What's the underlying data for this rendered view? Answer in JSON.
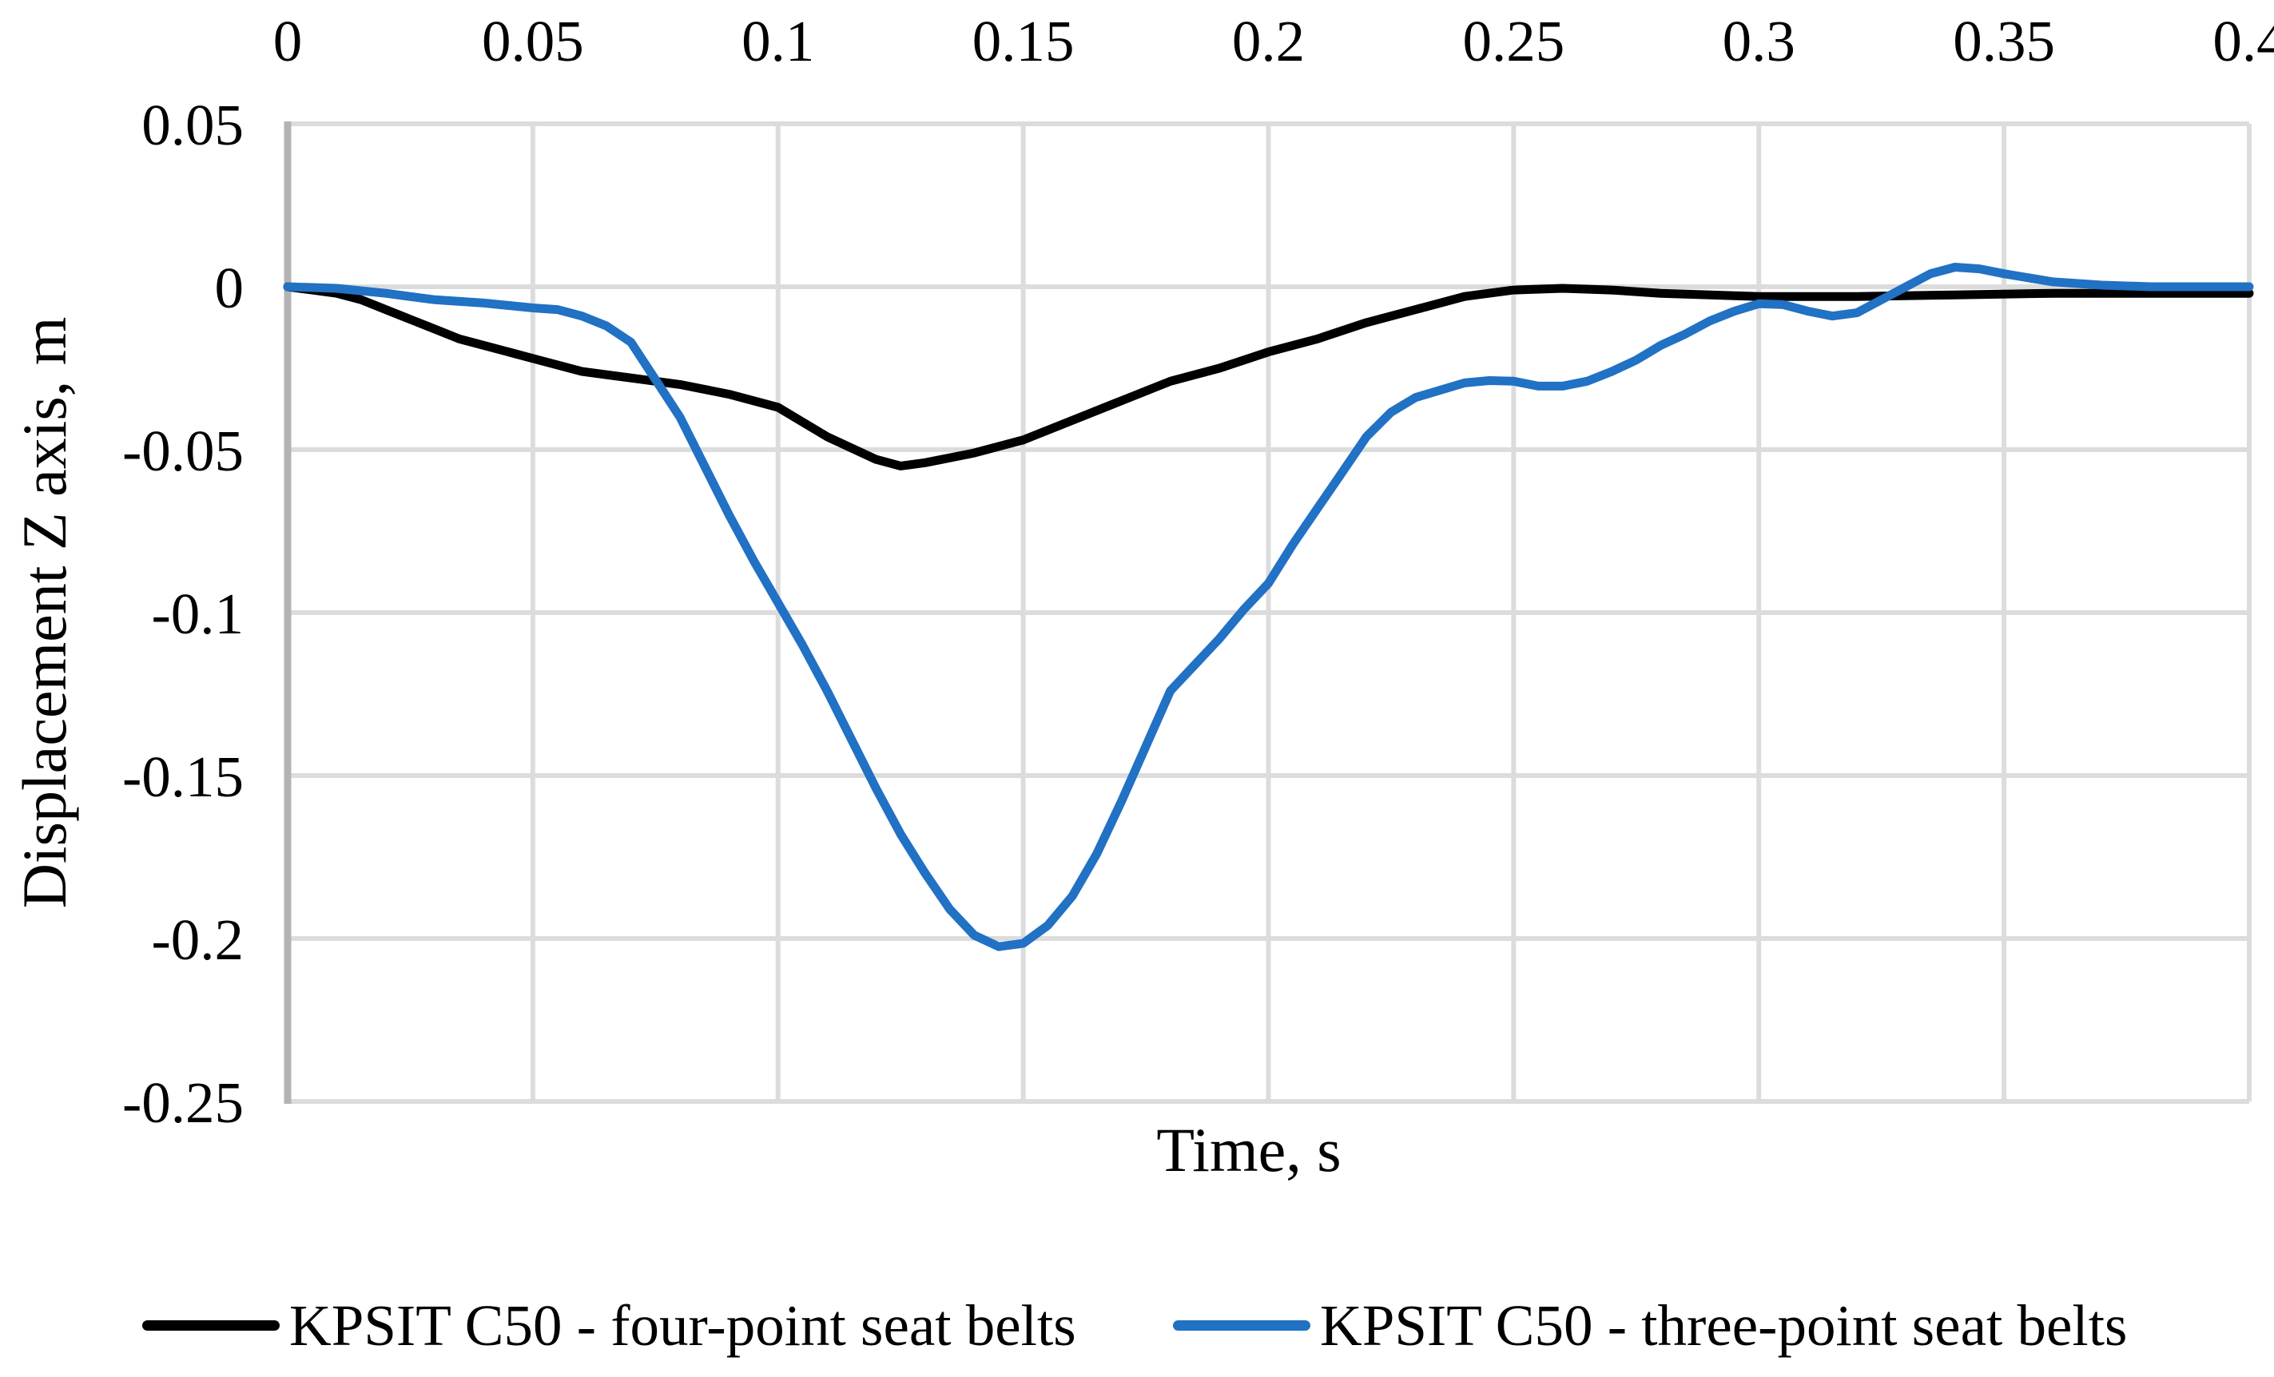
{
  "chart_data": {
    "type": "line",
    "title": "",
    "xlabel": "Time, s",
    "ylabel": "Displacement Z axis, m",
    "xlim": [
      0,
      0.4
    ],
    "ylim": [
      -0.25,
      0.05
    ],
    "x_ticks": [
      0,
      0.05,
      0.1,
      0.15,
      0.2,
      0.25,
      0.3,
      0.35,
      0.4
    ],
    "x_tick_labels": [
      "0",
      "0.05",
      "0.1",
      "0.15",
      "0.2",
      "0.25",
      "0.3",
      "0.35",
      "0.4"
    ],
    "y_ticks": [
      0.05,
      0,
      -0.05,
      -0.1,
      -0.15,
      -0.2,
      -0.25
    ],
    "y_tick_labels": [
      "0.05",
      "0",
      "-0.05",
      "-0.1",
      "-0.15",
      "-0.2",
      "-0.25"
    ],
    "grid": true,
    "legend_position": "bottom",
    "colors": {
      "gridline": "#DCDCDC",
      "axis_line": "#B3B3B3",
      "text": "#000000"
    },
    "series": [
      {
        "name": "KPSIT C50 - four-point seat belts",
        "color": "#000000",
        "x": [
          0,
          0.005,
          0.01,
          0.015,
          0.02,
          0.025,
          0.03,
          0.035,
          0.04,
          0.045,
          0.05,
          0.06,
          0.07,
          0.08,
          0.09,
          0.1,
          0.11,
          0.12,
          0.125,
          0.13,
          0.14,
          0.15,
          0.16,
          0.17,
          0.18,
          0.19,
          0.2,
          0.21,
          0.22,
          0.23,
          0.24,
          0.25,
          0.26,
          0.27,
          0.28,
          0.3,
          0.32,
          0.34,
          0.36,
          0.38,
          0.4
        ],
        "y": [
          0,
          -0.001,
          -0.002,
          -0.004,
          -0.007,
          -0.01,
          -0.013,
          -0.016,
          -0.018,
          -0.02,
          -0.022,
          -0.026,
          -0.028,
          -0.03,
          -0.033,
          -0.037,
          -0.046,
          -0.053,
          -0.055,
          -0.054,
          -0.051,
          -0.047,
          -0.041,
          -0.035,
          -0.029,
          -0.025,
          -0.02,
          -0.016,
          -0.011,
          -0.007,
          -0.003,
          -0.001,
          -0.0005,
          -0.001,
          -0.002,
          -0.003,
          -0.003,
          -0.0025,
          -0.002,
          -0.002,
          -0.002
        ]
      },
      {
        "name": "KPSIT C50 - three-point seat belts",
        "color": "#2171C4",
        "x": [
          0,
          0.01,
          0.02,
          0.03,
          0.04,
          0.05,
          0.055,
          0.06,
          0.065,
          0.07,
          0.075,
          0.08,
          0.085,
          0.09,
          0.095,
          0.1,
          0.105,
          0.11,
          0.115,
          0.12,
          0.125,
          0.13,
          0.135,
          0.14,
          0.145,
          0.15,
          0.155,
          0.16,
          0.165,
          0.17,
          0.175,
          0.18,
          0.185,
          0.19,
          0.195,
          0.2,
          0.205,
          0.21,
          0.215,
          0.22,
          0.225,
          0.23,
          0.24,
          0.245,
          0.25,
          0.255,
          0.26,
          0.265,
          0.27,
          0.275,
          0.28,
          0.285,
          0.29,
          0.295,
          0.3,
          0.305,
          0.31,
          0.315,
          0.32,
          0.325,
          0.33,
          0.335,
          0.34,
          0.345,
          0.35,
          0.36,
          0.37,
          0.38,
          0.39,
          0.4
        ],
        "y": [
          0,
          -0.0005,
          -0.002,
          -0.004,
          -0.005,
          -0.0065,
          -0.007,
          -0.009,
          -0.012,
          -0.017,
          -0.0285,
          -0.04,
          -0.055,
          -0.07,
          -0.084,
          -0.097,
          -0.11,
          -0.124,
          -0.139,
          -0.154,
          -0.168,
          -0.18,
          -0.191,
          -0.199,
          -0.2025,
          -0.2015,
          -0.196,
          -0.187,
          -0.174,
          -0.158,
          -0.141,
          -0.124,
          -0.116,
          -0.108,
          -0.099,
          -0.091,
          -0.079,
          -0.068,
          -0.057,
          -0.046,
          -0.0385,
          -0.034,
          -0.0295,
          -0.0288,
          -0.029,
          -0.0305,
          -0.0305,
          -0.029,
          -0.026,
          -0.0225,
          -0.018,
          -0.0145,
          -0.0105,
          -0.0075,
          -0.0052,
          -0.0055,
          -0.0075,
          -0.009,
          -0.008,
          -0.004,
          0,
          0.004,
          0.006,
          0.0055,
          0.004,
          0.0015,
          0.0005,
          0,
          0,
          0
        ]
      }
    ]
  },
  "legend": {
    "entry1": "KPSIT C50 - four-point seat belts",
    "entry2": "KPSIT C50 - three-point seat belts"
  }
}
